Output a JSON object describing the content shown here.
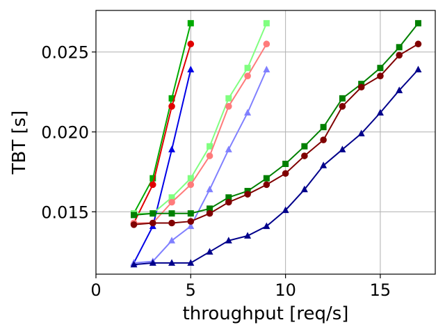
{
  "chart_data": {
    "type": "line",
    "xlabel": "throughput [req/s]",
    "ylabel": "TBT [s]",
    "xlim": [
      0,
      17.9
    ],
    "ylim": [
      0.0111,
      0.0276
    ],
    "xticks": [
      0,
      5,
      10,
      15
    ],
    "xtick_labels": [
      "0",
      "5",
      "10",
      "15"
    ],
    "yticks": [
      0.015,
      0.02,
      0.025
    ],
    "ytick_labels": [
      "0.015",
      "0.020",
      "0.025"
    ],
    "grid": true,
    "legend": "none",
    "series": [
      {
        "color": "#00aa00",
        "marker": "square",
        "x": [
          2,
          3,
          4,
          5
        ],
        "y": [
          0.0149,
          0.0171,
          0.0221,
          0.0268
        ]
      },
      {
        "color": "#e00000",
        "marker": "circle",
        "x": [
          2,
          3,
          4,
          5
        ],
        "y": [
          0.0143,
          0.0167,
          0.0216,
          0.0255
        ]
      },
      {
        "color": "#0000e6",
        "marker": "triangle",
        "x": [
          2,
          3,
          4,
          5
        ],
        "y": [
          0.0118,
          0.0141,
          0.0189,
          0.0239
        ]
      },
      {
        "color": "#80ff80",
        "marker": "square",
        "x": [
          2,
          3,
          4,
          5,
          6,
          7,
          8,
          9
        ],
        "y": [
          0.0149,
          0.0149,
          0.0159,
          0.0171,
          0.0191,
          0.0221,
          0.024,
          0.0268
        ]
      },
      {
        "color": "#ff7b7b",
        "marker": "circle",
        "x": [
          2,
          3,
          4,
          5,
          6,
          7,
          8,
          9
        ],
        "y": [
          0.0143,
          0.0143,
          0.0156,
          0.0167,
          0.0185,
          0.0216,
          0.0235,
          0.0255
        ]
      },
      {
        "color": "#8080ff",
        "marker": "triangle",
        "x": [
          2,
          3,
          4,
          5,
          6,
          7,
          8,
          9
        ],
        "y": [
          0.0118,
          0.0119,
          0.0132,
          0.0141,
          0.0164,
          0.0189,
          0.0212,
          0.0239
        ]
      },
      {
        "color": "#008000",
        "marker": "square",
        "x": [
          2,
          3,
          4,
          5,
          6,
          7,
          8,
          9,
          10,
          11,
          12,
          13,
          14,
          15,
          16,
          17
        ],
        "y": [
          0.0148,
          0.0149,
          0.0149,
          0.0149,
          0.0152,
          0.0159,
          0.0163,
          0.0171,
          0.018,
          0.0191,
          0.0203,
          0.0221,
          0.023,
          0.024,
          0.0253,
          0.0268
        ]
      },
      {
        "color": "#800000",
        "marker": "circle",
        "x": [
          2,
          3,
          4,
          5,
          6,
          7,
          8,
          9,
          10,
          11,
          12,
          13,
          14,
          15,
          16,
          17
        ],
        "y": [
          0.0142,
          0.0143,
          0.0143,
          0.0144,
          0.0149,
          0.0156,
          0.0161,
          0.0167,
          0.0174,
          0.0185,
          0.0195,
          0.0216,
          0.0228,
          0.0235,
          0.0248,
          0.0255
        ]
      },
      {
        "color": "#00008b",
        "marker": "triangle",
        "x": [
          2,
          3,
          4,
          5,
          6,
          7,
          8,
          9,
          10,
          11,
          12,
          13,
          14,
          15,
          16,
          17
        ],
        "y": [
          0.0117,
          0.0118,
          0.0118,
          0.0118,
          0.0125,
          0.0132,
          0.0135,
          0.0141,
          0.0151,
          0.0164,
          0.0179,
          0.0189,
          0.0199,
          0.0212,
          0.0226,
          0.0239
        ]
      }
    ]
  }
}
